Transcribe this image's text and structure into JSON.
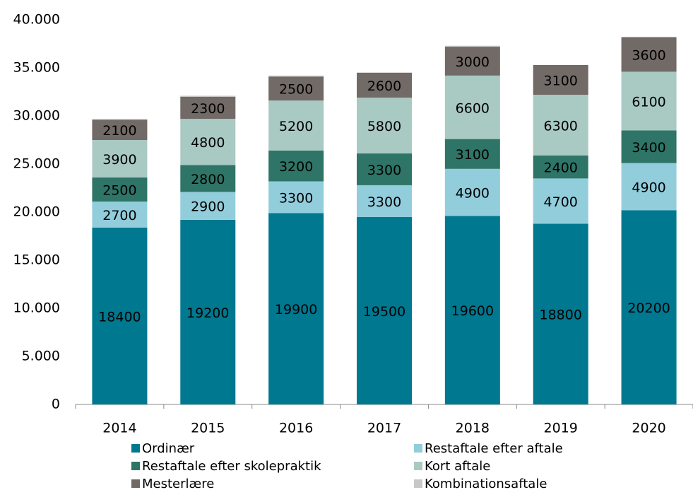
{
  "chart_data": {
    "type": "bar",
    "stacked": true,
    "categories": [
      "2014",
      "2015",
      "2016",
      "2017",
      "2018",
      "2019",
      "2020"
    ],
    "series": [
      {
        "name": "Ordinær",
        "color": "#00788f",
        "values": [
          18400,
          19200,
          19900,
          19500,
          19600,
          18800,
          20200
        ]
      },
      {
        "name": "Restaftale efter aftale",
        "color": "#92cddc",
        "values": [
          2700,
          2900,
          3300,
          3300,
          4900,
          4700,
          4900
        ]
      },
      {
        "name": "Restaftale efter skolepraktik",
        "color": "#2e7567",
        "values": [
          2500,
          2800,
          3200,
          3300,
          3100,
          2400,
          3400
        ]
      },
      {
        "name": "Kort aftale",
        "color": "#a9c9c3",
        "values": [
          3900,
          4800,
          5200,
          5800,
          6600,
          6300,
          6100
        ]
      },
      {
        "name": "Mesterlære",
        "color": "#716a66",
        "values": [
          2100,
          2300,
          2500,
          2600,
          3000,
          3100,
          3600
        ]
      },
      {
        "name": "Kombinationsaftale",
        "color": "#c8c8c8",
        "values": [
          100,
          100,
          100,
          0,
          100,
          0,
          0
        ]
      }
    ],
    "ylim": [
      0,
      40000
    ],
    "yticks": [
      0,
      {
        "value": 5000,
        "label": "5.000"
      },
      {
        "value": 10000,
        "label": "10.000"
      },
      {
        "value": 15000,
        "label": "15.000"
      },
      {
        "value": 20000,
        "label": "20.000"
      },
      {
        "value": 25000,
        "label": "25.000"
      },
      {
        "value": 30000,
        "label": "30.000"
      },
      {
        "value": 35000,
        "label": "35.000"
      },
      {
        "value": 40000,
        "label": "40.000"
      }
    ],
    "grid": false,
    "legend": "bottom"
  }
}
